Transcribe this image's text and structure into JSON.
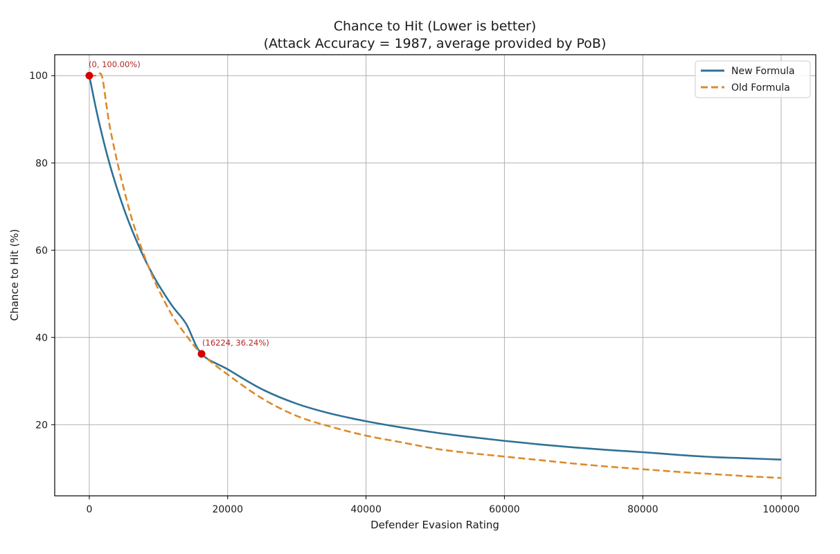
{
  "chart_data": {
    "type": "line",
    "title": "Chance to Hit (Lower is better)",
    "subtitle": "(Attack Accuracy = 1987, average provided by PoB)",
    "xlabel": "Defender Evasion Rating",
    "ylabel": "Chance to Hit (%)",
    "xlim": [
      -5000,
      105000
    ],
    "ylim": [
      3.7,
      104.8
    ],
    "xticks": [
      0,
      20000,
      40000,
      60000,
      80000,
      100000
    ],
    "xtick_labels": [
      "0",
      "20000",
      "40000",
      "60000",
      "80000",
      "100000"
    ],
    "yticks": [
      20,
      40,
      60,
      80,
      100
    ],
    "ytick_labels": [
      "20",
      "40",
      "60",
      "80",
      "100"
    ],
    "grid": true,
    "legend_position": "upper right",
    "legend": [
      "New Formula",
      "Old Formula"
    ],
    "colors": {
      "new": "#2e7196",
      "old": "#dc8a2a",
      "points": "#d40000",
      "annotation": "#b22626"
    },
    "series": [
      {
        "name": "New Formula",
        "style": "solid",
        "x": [
          0,
          1000,
          2000,
          3000,
          4000,
          5000,
          6000,
          7000,
          8000,
          9000,
          10000,
          12000,
          14000,
          16224,
          20000,
          25000,
          30000,
          35000,
          40000,
          45000,
          50000,
          55000,
          60000,
          65000,
          70000,
          75000,
          80000,
          85000,
          90000,
          95000,
          100000
        ],
        "y": [
          100,
          92.2,
          85.4,
          79.4,
          74.2,
          69.5,
          65.3,
          61.5,
          58.0,
          54.9,
          52.1,
          47.2,
          43.1,
          36.24,
          32.7,
          28.1,
          24.8,
          22.5,
          20.8,
          19.4,
          18.2,
          17.2,
          16.3,
          15.5,
          14.8,
          14.2,
          13.7,
          13.1,
          12.6,
          12.3,
          12.0
        ]
      },
      {
        "name": "Old Formula",
        "style": "dashed",
        "x": [
          0,
          1000,
          1800,
          2500,
          3000,
          4000,
          5000,
          6000,
          7000,
          8000,
          9000,
          10000,
          12000,
          14000,
          16224,
          20000,
          25000,
          30000,
          35000,
          40000,
          45000,
          50000,
          55000,
          60000,
          65000,
          70000,
          75000,
          80000,
          85000,
          90000,
          95000,
          100000
        ],
        "y": [
          100,
          100,
          100,
          93.0,
          88.0,
          80.5,
          74.0,
          68.0,
          63.0,
          58.5,
          54.5,
          51.0,
          45.0,
          40.5,
          36.24,
          31.5,
          26.0,
          22.0,
          19.5,
          17.5,
          16.0,
          14.5,
          13.5,
          12.7,
          11.9,
          11.1,
          10.4,
          9.8,
          9.2,
          8.7,
          8.2,
          7.8
        ]
      }
    ],
    "points": [
      {
        "x": 0,
        "y": 100,
        "label": "(0, 100.00%)"
      },
      {
        "x": 16224,
        "y": 36.24,
        "label": "(16224, 36.24%)"
      }
    ]
  }
}
